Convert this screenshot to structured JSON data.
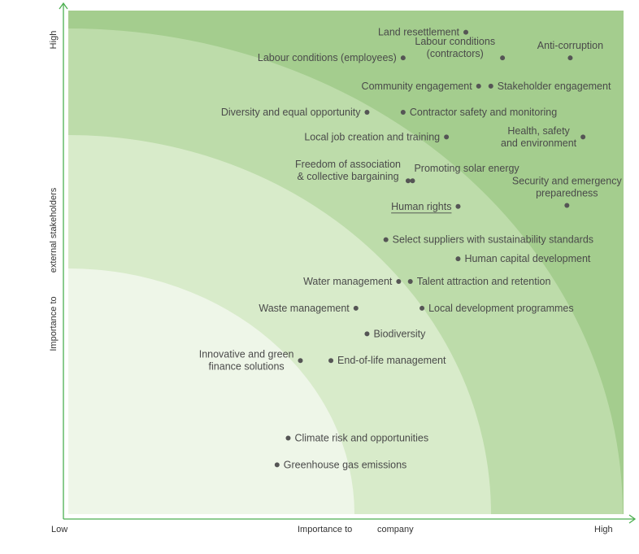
{
  "chart_data": {
    "type": "scatter",
    "xlabel": "Importance to company",
    "ylabel": "Importance to external stakeholders",
    "x_axis": {
      "low_label": "Low",
      "high_label": "High",
      "title_parts": [
        "Importance to",
        "company"
      ]
    },
    "y_axis": {
      "high_label": "High",
      "title_parts": [
        "Importance to",
        "external stakeholders"
      ]
    },
    "xlim": [
      0,
      100
    ],
    "ylim": [
      0,
      100
    ],
    "colors": {
      "band_1": "#a4cd8e",
      "band_2": "#bddcaa",
      "band_3": "#d8ebca",
      "band_4": "#eef6e8",
      "axis": "#4caf50",
      "dot": "#555555",
      "text": "#4a4a4a"
    },
    "points": [
      {
        "name": "Land resettlement",
        "x": 71.6,
        "y": 95.7,
        "label_side": "left"
      },
      {
        "name": "Labour conditions (employees)",
        "x": 60.3,
        "y": 90.6,
        "label_side": "left"
      },
      {
        "name": "Labour conditions\n(contractors)",
        "x": 78.2,
        "y": 90.6,
        "label_side": "left-above"
      },
      {
        "name": "Anti-corruption",
        "x": 90.4,
        "y": 90.6,
        "label_side": "above"
      },
      {
        "name": "Community engagement",
        "x": 73.9,
        "y": 85.0,
        "label_side": "left"
      },
      {
        "name": "Stakeholder engagement",
        "x": 76.1,
        "y": 85.0,
        "label_side": "right"
      },
      {
        "name": "Diversity and equal opportunity",
        "x": 53.8,
        "y": 79.8,
        "label_side": "left"
      },
      {
        "name": "Contractor safety and monitoring",
        "x": 60.3,
        "y": 79.8,
        "label_side": "right"
      },
      {
        "name": "Local job creation and training",
        "x": 68.1,
        "y": 74.9,
        "label_side": "left"
      },
      {
        "name": "Health, safety\nand environment",
        "x": 92.7,
        "y": 74.9,
        "label_side": "left"
      },
      {
        "name": "Freedom of association\n& collective bargaining",
        "x": 61.2,
        "y": 66.2,
        "label_side": "left-above"
      },
      {
        "name": "Promoting solar energy",
        "x": 62.0,
        "y": 66.2,
        "label_side": "right-above"
      },
      {
        "name": "Security and emergency\npreparedness",
        "x": 89.8,
        "y": 61.3,
        "label_side": "above"
      },
      {
        "name": "Human rights",
        "x": 70.2,
        "y": 61.1,
        "label_side": "left",
        "underline": true
      },
      {
        "name": "Select suppliers with sustainability standards",
        "x": 57.2,
        "y": 54.5,
        "label_side": "right"
      },
      {
        "name": "Human capital development",
        "x": 70.2,
        "y": 50.7,
        "label_side": "right"
      },
      {
        "name": "Water management",
        "x": 59.5,
        "y": 46.2,
        "label_side": "left"
      },
      {
        "name": "Talent attraction and retention",
        "x": 61.6,
        "y": 46.2,
        "label_side": "right"
      },
      {
        "name": "Waste management",
        "x": 51.8,
        "y": 40.9,
        "label_side": "left"
      },
      {
        "name": "Local development programmes",
        "x": 63.7,
        "y": 40.9,
        "label_side": "right"
      },
      {
        "name": "Biodiversity",
        "x": 53.8,
        "y": 35.8,
        "label_side": "right"
      },
      {
        "name": "Innovative and green\nfinance solutions",
        "x": 41.8,
        "y": 30.5,
        "label_side": "left"
      },
      {
        "name": "End-of-life management",
        "x": 47.3,
        "y": 30.5,
        "label_side": "right"
      },
      {
        "name": "Climate risk and opportunities",
        "x": 39.6,
        "y": 15.1,
        "label_side": "right"
      },
      {
        "name": "Greenhouse gas emissions",
        "x": 37.6,
        "y": 9.8,
        "label_side": "right"
      }
    ]
  }
}
